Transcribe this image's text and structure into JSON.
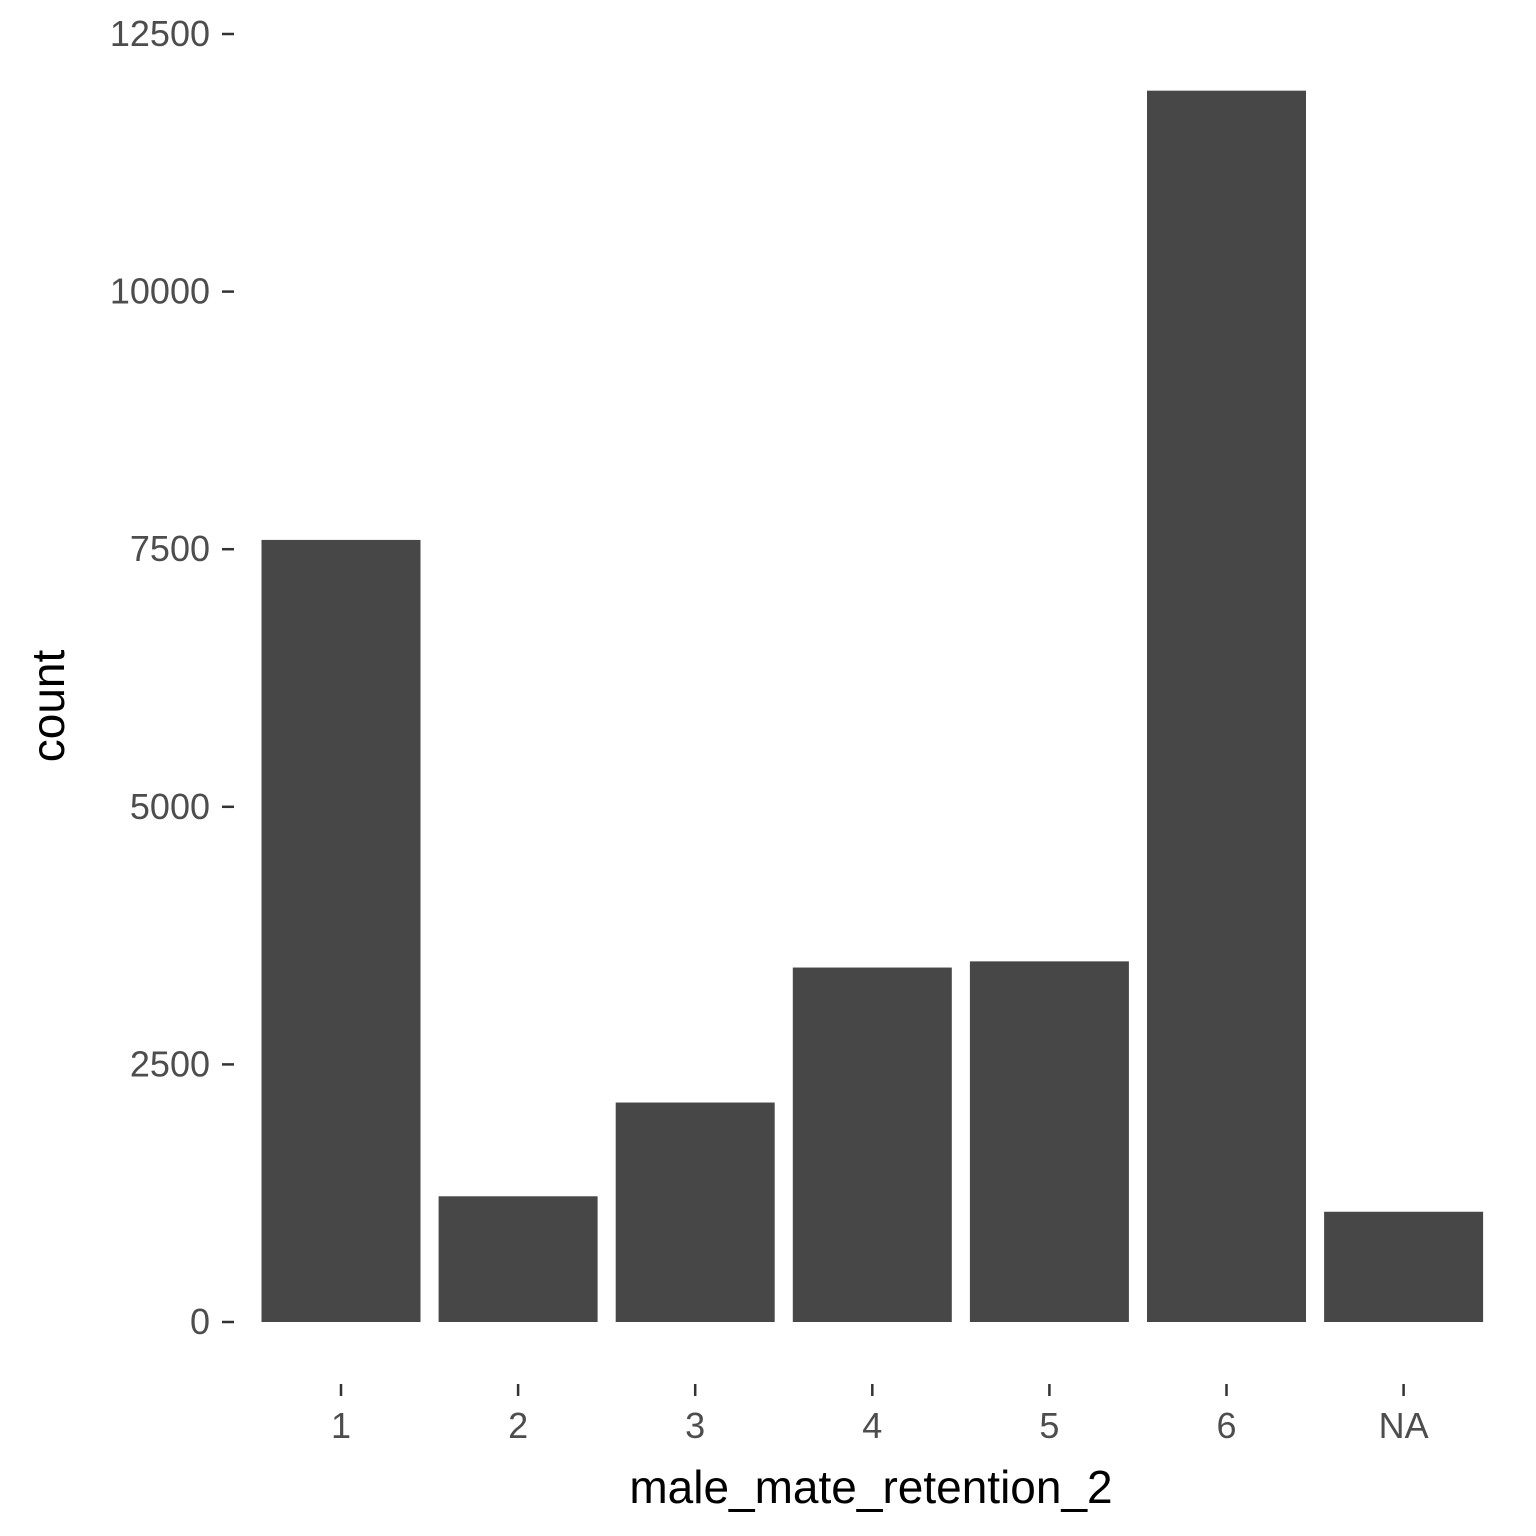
{
  "chart_data": {
    "type": "bar",
    "title": "",
    "xlabel": "male_mate_retention_2",
    "ylabel": "count",
    "categories": [
      "1",
      "2",
      "3",
      "4",
      "5",
      "6",
      "NA"
    ],
    "values": [
      7590,
      1220,
      2130,
      3440,
      3500,
      11950,
      1070
    ],
    "ylim": [
      0,
      12500
    ],
    "yticks": [
      "0",
      "2500",
      "5000",
      "7500",
      "10000",
      "12500"
    ],
    "ytick_values": [
      0,
      2500,
      5000,
      7500,
      10000,
      12500
    ],
    "grid": false,
    "legend": "none",
    "bar_color": "#474747"
  }
}
